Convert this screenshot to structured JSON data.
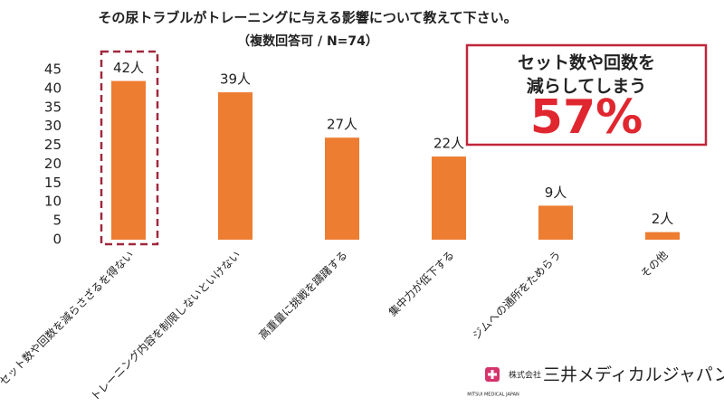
{
  "chart_data": {
    "type": "bar",
    "title": "その尿トラブルがトレーニングに与える影響について教えて下さい。",
    "subtitle": "（複数回答可 / N=74）",
    "categories": [
      "セット数や回数を減らさざるを得ない",
      "トレーニング内容を制限しないといけない",
      "高重量に挑戦を躊躇する",
      "集中力が低下する",
      "ジムへの通所をためらう",
      "その他"
    ],
    "values": [
      42,
      39,
      27,
      22,
      9,
      2
    ],
    "value_labels": [
      "42人",
      "39人",
      "27人",
      "22人",
      "9人",
      "2人"
    ],
    "color": "#ED7D31",
    "ylim": [
      0,
      45
    ],
    "yticks": [
      0,
      5,
      10,
      15,
      20,
      25,
      30,
      35,
      40,
      45
    ],
    "grid": false,
    "callout": {
      "lines": [
        "セット数や回数を",
        "減らしてしまう"
      ],
      "value": "57%"
    },
    "logo": {
      "name": "三井メディカルジャパン",
      "prefix": "株式会社",
      "english": "MITSUI MEDICAL JAPAN"
    }
  }
}
